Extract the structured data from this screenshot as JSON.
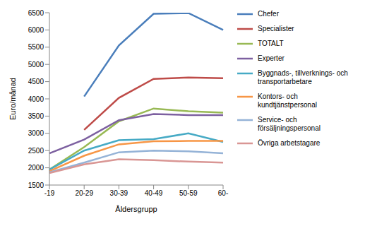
{
  "chart_data": {
    "type": "line",
    "x_label": "Åldersgrupp",
    "y_label": "Euro/månad",
    "categories": [
      "-19",
      "20-29",
      "30-39",
      "40-49",
      "50-59",
      "60-"
    ],
    "ylim": [
      1500,
      6500
    ],
    "yticks": [
      1500,
      2000,
      2500,
      3000,
      3500,
      4000,
      4500,
      5000,
      5500,
      6000,
      6500
    ],
    "grid": false,
    "legend": "right",
    "series": [
      {
        "name": "Chefer",
        "color": "#4A7EBB",
        "values": [
          null,
          4070,
          5550,
          6470,
          6490,
          6000
        ]
      },
      {
        "name": "Specialister",
        "color": "#BE4B48",
        "values": [
          null,
          3100,
          4030,
          4580,
          4620,
          4600
        ]
      },
      {
        "name": "TOTALT",
        "color": "#98B954",
        "values": [
          1950,
          2600,
          3350,
          3720,
          3640,
          3600
        ]
      },
      {
        "name": "Experter",
        "color": "#7D60A0",
        "values": [
          2420,
          2820,
          3380,
          3560,
          3530,
          3530
        ]
      },
      {
        "name": "Byggnads-, tillverknings- och transportarbetare",
        "color": "#46AAC5",
        "values": [
          1950,
          2500,
          2800,
          2830,
          3000,
          2750
        ]
      },
      {
        "name": "Kontors- och kundtjänstpersonal",
        "color": "#F79646",
        "values": [
          1900,
          2350,
          2680,
          2770,
          2780,
          2780
        ]
      },
      {
        "name": "Service- och försäljningspersonal",
        "color": "#95B3D7",
        "values": [
          1870,
          2150,
          2450,
          2500,
          2480,
          2420
        ]
      },
      {
        "name": "Övriga arbetstagare",
        "color": "#D99694",
        "values": [
          1850,
          2100,
          2250,
          2220,
          2180,
          2150
        ]
      }
    ]
  }
}
